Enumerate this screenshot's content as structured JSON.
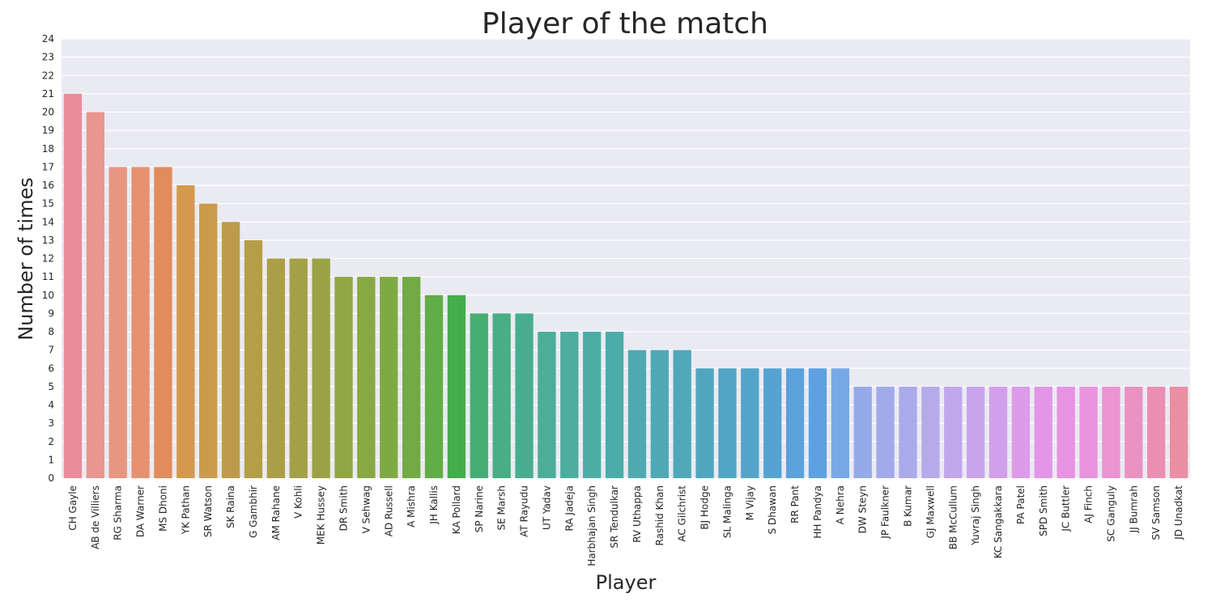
{
  "chart_data": {
    "type": "bar",
    "title": "Player of the match",
    "xlabel": "Player",
    "ylabel": "Number of times",
    "ylim": [
      0,
      24
    ],
    "yticks": [
      0,
      1,
      2,
      3,
      4,
      5,
      6,
      7,
      8,
      9,
      10,
      11,
      12,
      13,
      14,
      15,
      16,
      17,
      18,
      19,
      20,
      21,
      22,
      23,
      24
    ],
    "grid": true,
    "categories": [
      "CH Gayle",
      "AB de Villiers",
      "RG Sharma",
      "DA Warner",
      "MS Dhoni",
      "YK Pathan",
      "SR Watson",
      "SK Raina",
      "G Gambhir",
      "AM Rahane",
      "V Kohli",
      "MEK Hussey",
      "DR Smith",
      "V Sehwag",
      "AD Russell",
      "A Mishra",
      "JH Kallis",
      "KA Pollard",
      "SP Narine",
      "SE Marsh",
      "AT Rayudu",
      "UT Yadav",
      "RA Jadeja",
      "Harbhajan Singh",
      "SR Tendulkar",
      "RV Uthappa",
      "Rashid Khan",
      "AC Gilchrist",
      "BJ Hodge",
      "SL Malinga",
      "M Vijay",
      "S Dhawan",
      "RR Pant",
      "HH Pandya",
      "A Nehra",
      "DW Steyn",
      "JP Faulkner",
      "B Kumar",
      "GJ Maxwell",
      "BB McCullum",
      "Yuvraj Singh",
      "KC Sangakkara",
      "PA Patel",
      "SPD Smith",
      "JC Buttler",
      "AJ Finch",
      "SC Ganguly",
      "JJ Bumrah",
      "SV Samson",
      "JD Unadkat"
    ],
    "values": [
      21,
      20,
      17,
      17,
      17,
      16,
      15,
      14,
      13,
      12,
      12,
      12,
      11,
      11,
      11,
      11,
      10,
      10,
      9,
      9,
      9,
      8,
      8,
      8,
      8,
      7,
      7,
      7,
      6,
      6,
      6,
      6,
      6,
      6,
      6,
      5,
      5,
      5,
      5,
      5,
      5,
      5,
      5,
      5,
      5,
      5,
      5,
      5,
      5,
      5
    ],
    "colors": [
      "#ea8d9a",
      "#e9968e",
      "#e79682",
      "#e69170",
      "#e38b5a",
      "#d4994d",
      "#c89c4b",
      "#bd9b4a",
      "#b39f48",
      "#ab9f47",
      "#a3a046",
      "#9aa245",
      "#91a644",
      "#88a844",
      "#7eaa44",
      "#72ab44",
      "#62ad46",
      "#44ad4b",
      "#46ae72",
      "#48ae83",
      "#49ae8f",
      "#4aae99",
      "#4bae9f",
      "#4cada4",
      "#4dacaa",
      "#4eaab0",
      "#4fa9b5",
      "#50a8b9",
      "#51a6bf",
      "#52a5c4",
      "#54a4ca",
      "#56a3d1",
      "#5aa2db",
      "#5ea1e3",
      "#77a8e6",
      "#95abe9",
      "#a2abe9",
      "#abaaea",
      "#b6aaea",
      "#c0a8eb",
      "#c9a4ea",
      "#d39fea",
      "#dd9be9",
      "#e396e7",
      "#e793e3",
      "#e994dd",
      "#ea94d1",
      "#ea92c2",
      "#eb8fb2",
      "#ea8ea3"
    ]
  }
}
